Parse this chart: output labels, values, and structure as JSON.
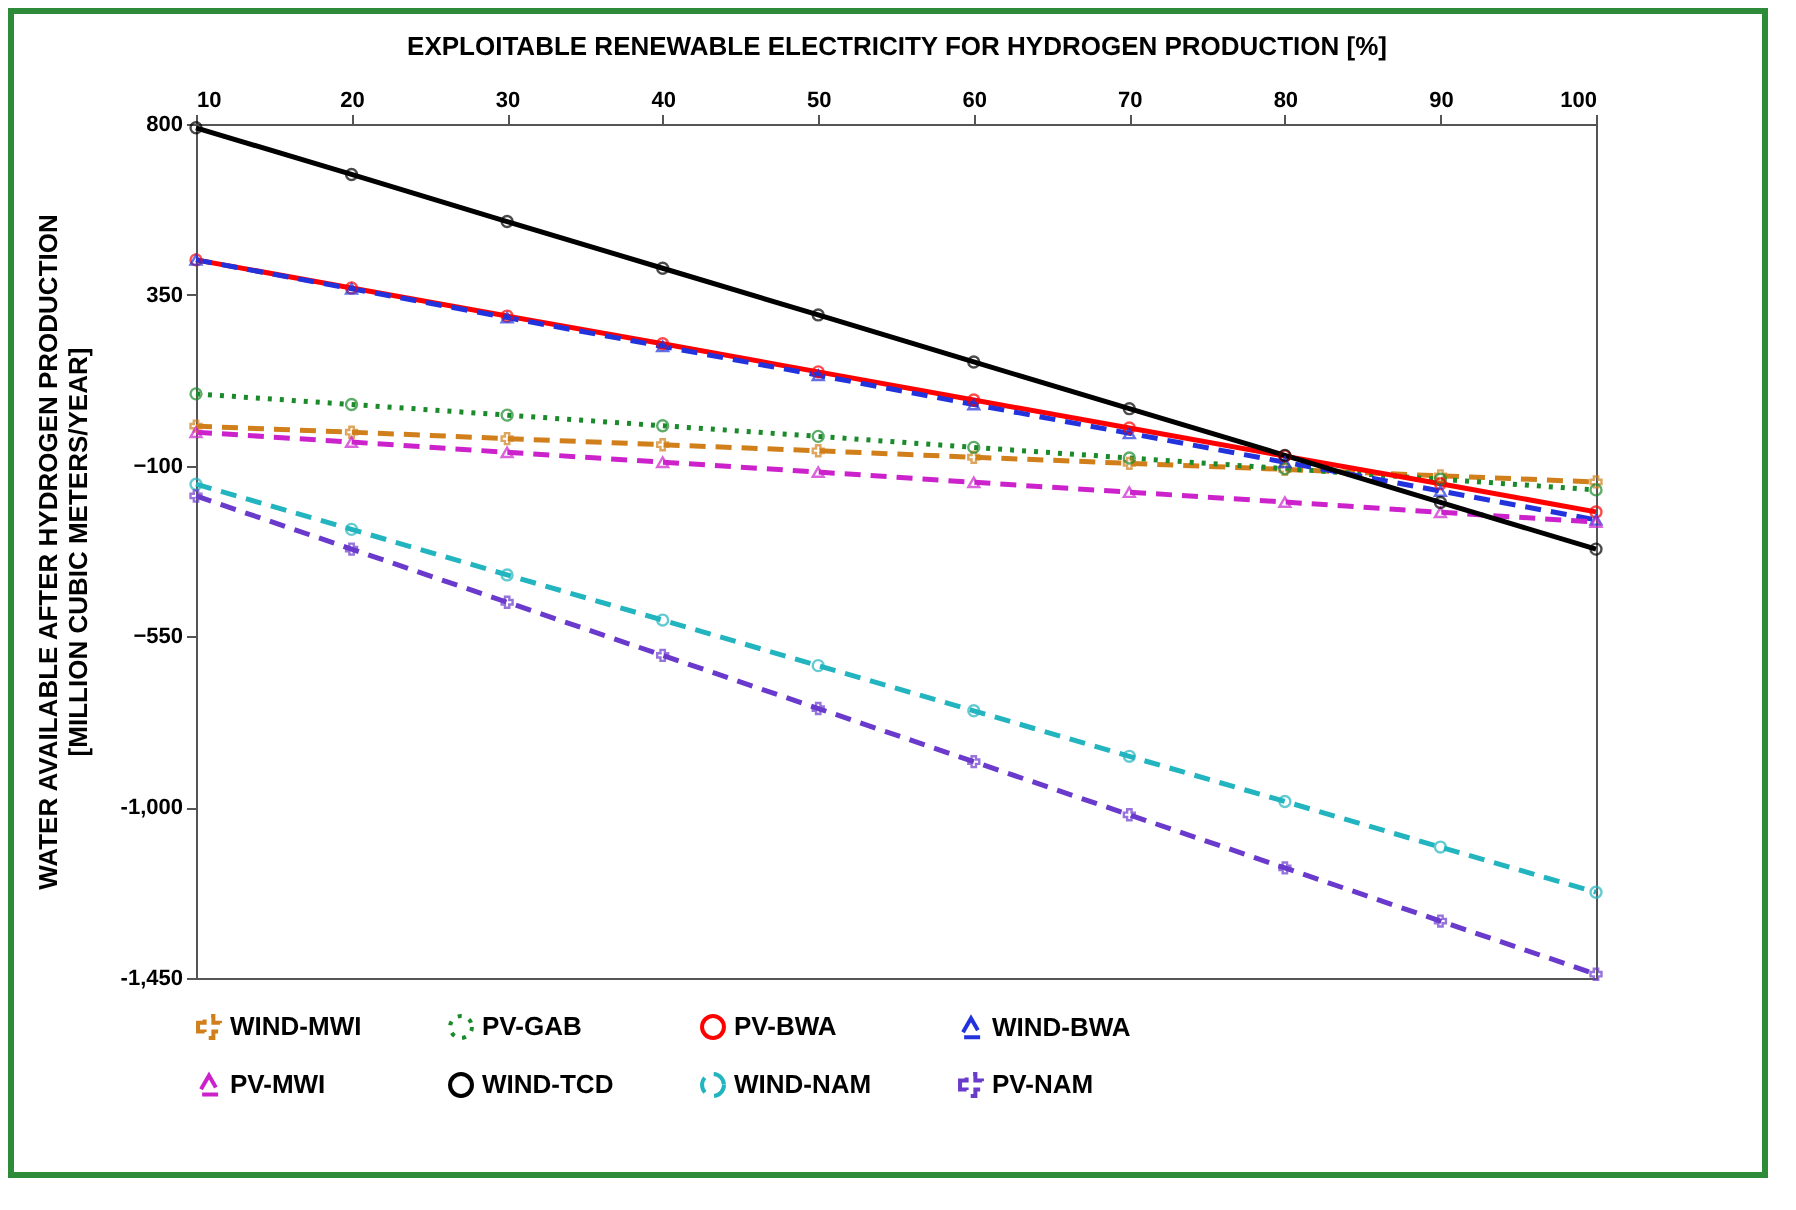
{
  "chart_data": {
    "type": "line",
    "xlabel": "EXPLOITABLE RENEWABLE ELECTRICITY FOR HYDROGEN PRODUCTION [%]",
    "ylabel": "WATER AVAILABLE AFTER HYDROGEN PRODUCTION\n[MILLION CUBIC METERS/YEAR]",
    "x": [
      10,
      20,
      30,
      40,
      50,
      60,
      70,
      80,
      90,
      100
    ],
    "xlim": [
      10,
      100
    ],
    "xticks": [
      10,
      20,
      30,
      40,
      50,
      60,
      70,
      80,
      90,
      100
    ],
    "ylim": [
      -1450,
      800
    ],
    "yticks": [
      {
        "value": -1450,
        "label": "-1,450"
      },
      {
        "value": -1000,
        "label": "-1,000"
      },
      -550,
      -100,
      350,
      800
    ],
    "grid": false,
    "legend": "bottom",
    "series": [
      {
        "name": "WIND-MWI",
        "color": "#d07f1a",
        "marker": "cross",
        "line_style": "dashed",
        "values": [
          4,
          -12,
          -29,
          -45,
          -61,
          -78,
          -94,
          -110,
          -127,
          -143
        ]
      },
      {
        "name": "PV-GAB",
        "color": "#1a8a2a",
        "marker": "circle",
        "line_style": "dotted",
        "values": [
          89,
          61,
          33,
          5,
          -23,
          -52,
          -80,
          -108,
          -136,
          -164
        ]
      },
      {
        "name": "PV-BWA",
        "color": "#ff0000",
        "marker": "circle",
        "line_style": "solid",
        "values": [
          442,
          368,
          294,
          221,
          147,
          73,
          -1,
          -75,
          -148,
          -222
        ]
      },
      {
        "name": "WIND-BWA",
        "color": "#2233dd",
        "marker": "triangle",
        "line_style": "dashed",
        "values": [
          442,
          366,
          290,
          214,
          138,
          61,
          -15,
          -91,
          -167,
          -243
        ]
      },
      {
        "name": "PV-MWI",
        "color": "#cc22cc",
        "marker": "triangle",
        "line_style": "dashed",
        "values": [
          -12,
          -38,
          -65,
          -91,
          -117,
          -144,
          -170,
          -196,
          -223,
          -249
        ]
      },
      {
        "name": "WIND-TCD",
        "color": "#000000",
        "marker": "circle",
        "line_style": "solid",
        "values": [
          790,
          667,
          543,
          420,
          297,
          173,
          50,
          -73,
          -197,
          -320
        ]
      },
      {
        "name": "WIND-NAM",
        "color": "#22b5c0",
        "marker": "circle",
        "line_style": "dashed",
        "values": [
          -149,
          -268,
          -388,
          -507,
          -627,
          -746,
          -866,
          -985,
          -1105,
          -1224
        ]
      },
      {
        "name": "PV-NAM",
        "color": "#6a3acc",
        "marker": "cross",
        "line_style": "dashed",
        "values": [
          -180,
          -320,
          -460,
          -600,
          -740,
          -880,
          -1020,
          -1160,
          -1300,
          -1440
        ]
      }
    ]
  }
}
